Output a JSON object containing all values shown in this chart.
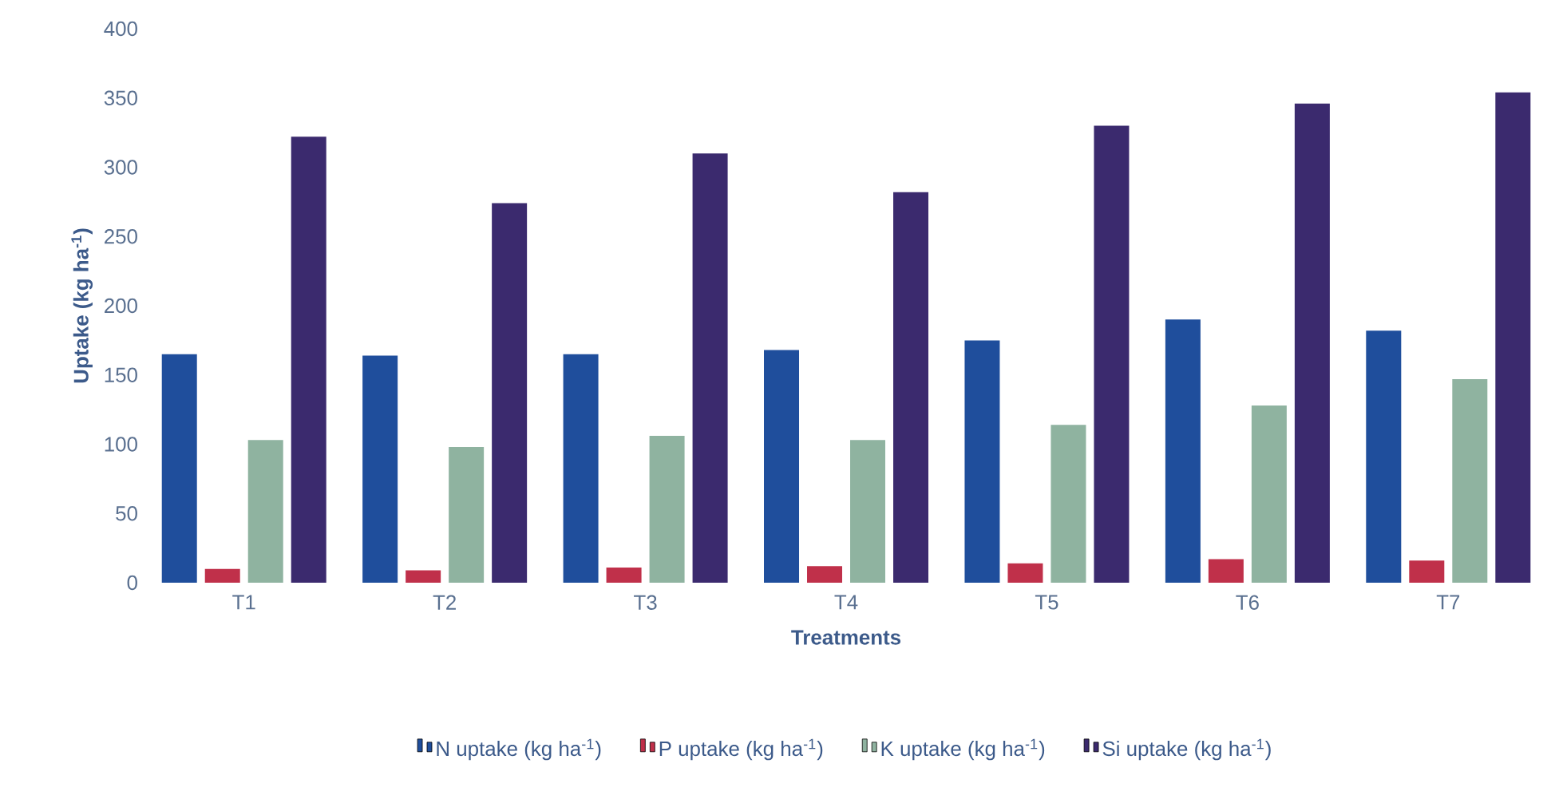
{
  "chart_data": {
    "type": "bar",
    "xlabel": "Treatments",
    "ylabel": "Uptake (kg ha$^{-1}$)",
    "categories": [
      "T1",
      "T2",
      "T3",
      "T4",
      "T5",
      "T6",
      "T7"
    ],
    "series": [
      {
        "name": "N uptake (kg ha$^{-1}$)",
        "color": "#1f4e9c",
        "values": [
          165,
          164,
          165,
          168,
          175,
          190,
          182
        ]
      },
      {
        "name": "P uptake (kg ha$^{-1}$)",
        "color": "#c0304a",
        "values": [
          10,
          9,
          11,
          12,
          14,
          17,
          16
        ]
      },
      {
        "name": "K uptake (kg ha$^{-1}$)",
        "color": "#8fb3a0",
        "values": [
          103,
          98,
          106,
          103,
          114,
          128,
          147
        ]
      },
      {
        "name": "Si uptake (kg ha$^{-1}$)",
        "color": "#3b2a6e",
        "values": [
          322,
          274,
          310,
          282,
          330,
          346,
          354
        ]
      }
    ],
    "ylim": [
      0,
      400
    ],
    "yticks": [
      0,
      50,
      100,
      150,
      200,
      250,
      300,
      350,
      400
    ],
    "legend": "bottom"
  }
}
